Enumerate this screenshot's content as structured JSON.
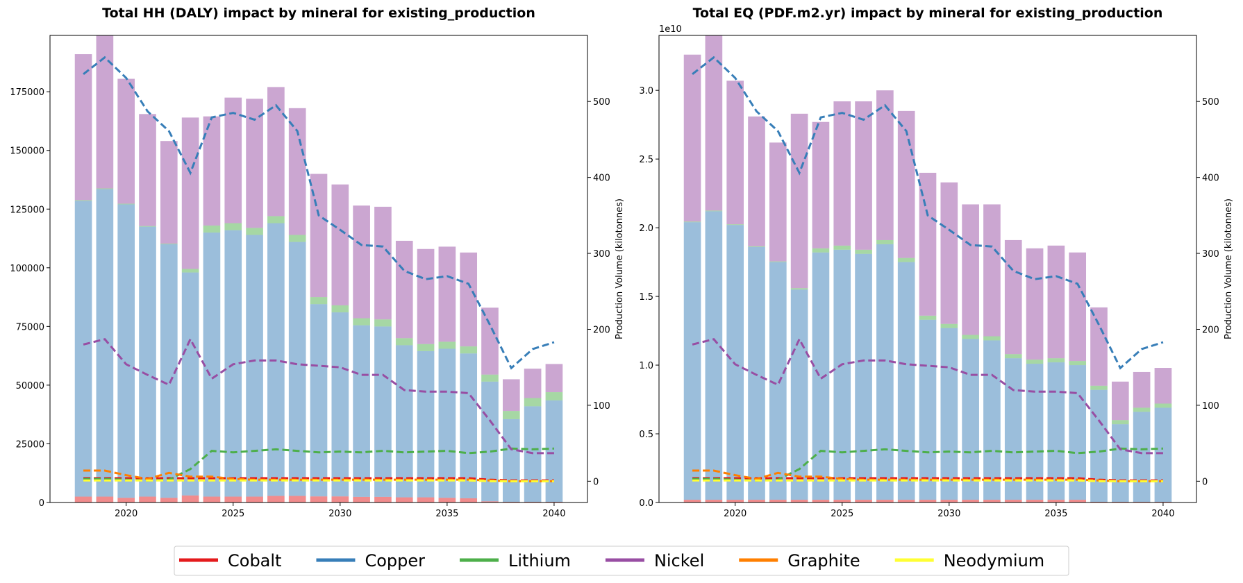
{
  "chart_data": [
    {
      "type": "bar",
      "title": "Total HH (DALY) impact by mineral for existing_production",
      "y2label": "Production Volume (kilotonnes)",
      "x": [
        2018,
        2019,
        2020,
        2021,
        2022,
        2023,
        2024,
        2025,
        2026,
        2027,
        2028,
        2029,
        2030,
        2031,
        2032,
        2033,
        2034,
        2035,
        2036,
        2037,
        2038,
        2039,
        2040
      ],
      "xlim": [
        2016.44,
        2041.56
      ],
      "xticks": [
        2020,
        2025,
        2030,
        2035,
        2040
      ],
      "ylim": [
        0,
        199000
      ],
      "yticks": [
        0,
        25000,
        50000,
        75000,
        100000,
        125000,
        150000,
        175000
      ],
      "y2lim": [
        -28,
        587
      ],
      "y2ticks": [
        0,
        100,
        200,
        300,
        400,
        500
      ],
      "series": [
        {
          "values": [
            2500,
            2500,
            2000,
            2500,
            2000,
            3000,
            2500,
            2500,
            2500,
            2800,
            2800,
            2600,
            2600,
            2400,
            2400,
            2200,
            2200,
            2000,
            1800,
            500,
            300,
            300,
            300
          ],
          "production": [
            4,
            4,
            4,
            4,
            4,
            4,
            4,
            4,
            4,
            4,
            4,
            4,
            4,
            4,
            4,
            4,
            4,
            4,
            4,
            2,
            1,
            1,
            1
          ]
        },
        {
          "values": [
            126000,
            131000,
            125000,
            115000,
            108000,
            95000,
            112500,
            113500,
            111500,
            116200,
            108200,
            81900,
            78400,
            73100,
            72600,
            64800,
            62300,
            63500,
            61700,
            51000,
            35200,
            40700,
            43200
          ],
          "production": [
            536,
            558,
            531,
            487,
            461,
            406,
            479,
            485,
            476,
            495,
            461,
            350,
            331,
            311,
            309,
            277,
            266,
            270,
            260,
            206,
            149,
            174,
            183
          ]
        },
        {
          "values": [
            300,
            300,
            300,
            300,
            300,
            1500,
            3000,
            3000,
            3000,
            3000,
            3000,
            3000,
            3000,
            3000,
            3000,
            3000,
            3000,
            3000,
            3000,
            3000,
            3500,
            3500,
            3500
          ],
          "production": [
            3,
            3,
            2,
            1,
            2,
            16,
            40,
            38,
            40,
            42,
            40,
            38,
            39,
            38,
            40,
            38,
            39,
            40,
            37,
            39,
            43,
            42,
            43
          ]
        },
        {
          "values": [
            62200,
            66200,
            53200,
            47700,
            43700,
            64500,
            46500,
            53500,
            55000,
            55000,
            54000,
            52500,
            51500,
            48000,
            48000,
            41500,
            40500,
            40500,
            40000,
            28500,
            13500,
            12500,
            12000
          ],
          "production": [
            180,
            187,
            154,
            140,
            127,
            187,
            135,
            154,
            159,
            159,
            154,
            152,
            150,
            140,
            140,
            120,
            118,
            118,
            116,
            80,
            42,
            37,
            37
          ]
        },
        {
          "values": [
            0,
            0,
            0,
            0,
            0,
            0,
            0,
            0,
            0,
            0,
            0,
            0,
            0,
            0,
            0,
            0,
            0,
            0,
            0,
            0,
            0,
            0,
            0
          ],
          "production": [
            14,
            14,
            8,
            3,
            11,
            6,
            6,
            3,
            2,
            2,
            2,
            2,
            2,
            2,
            2,
            2,
            2,
            2,
            2,
            1,
            0,
            0,
            0
          ]
        },
        {
          "values": [
            0,
            0,
            0,
            0,
            0,
            0,
            0,
            0,
            0,
            0,
            0,
            0,
            0,
            0,
            0,
            0,
            0,
            0,
            0,
            0,
            0,
            0,
            0
          ],
          "production": [
            1,
            1,
            1,
            1,
            1,
            1,
            1,
            1,
            1,
            1,
            1,
            1,
            1,
            1,
            1,
            1,
            1,
            1,
            1,
            0,
            0,
            0,
            0
          ]
        }
      ]
    },
    {
      "type": "bar",
      "title": "Total EQ (PDF.m2.yr) impact by mineral for existing_production",
      "y2label": "Production Volume (kilotonnes)",
      "y_offset_label": "1e10",
      "x": [
        2018,
        2019,
        2020,
        2021,
        2022,
        2023,
        2024,
        2025,
        2026,
        2027,
        2028,
        2029,
        2030,
        2031,
        2032,
        2033,
        2034,
        2035,
        2036,
        2037,
        2038,
        2039,
        2040
      ],
      "xlim": [
        2016.44,
        2041.56
      ],
      "xticks": [
        2020,
        2025,
        2030,
        2035,
        2040
      ],
      "ylim": [
        0,
        3.4
      ],
      "yticks": [
        {
          "value": 0,
          "label": "0.0"
        },
        0.5,
        {
          "value": 1,
          "label": "1.0"
        },
        1.5,
        {
          "value": 2,
          "label": "2.0"
        },
        2.5,
        {
          "value": 3,
          "label": "3.0"
        }
      ],
      "y2lim": [
        -28,
        587
      ],
      "y2ticks": [
        0,
        100,
        200,
        300,
        400,
        500
      ],
      "series": [
        {
          "values": [
            0.02,
            0.02,
            0.02,
            0.02,
            0.02,
            0.02,
            0.02,
            0.02,
            0.02,
            0.02,
            0.02,
            0.02,
            0.02,
            0.02,
            0.02,
            0.02,
            0.02,
            0.02,
            0.02,
            0.005,
            0.005,
            0.005,
            0.005
          ],
          "production": [
            4,
            4,
            4,
            4,
            4,
            4,
            4,
            4,
            4,
            4,
            4,
            4,
            4,
            4,
            4,
            4,
            4,
            4,
            4,
            2,
            1,
            1,
            1
          ]
        },
        {
          "values": [
            2.02,
            2.1,
            2.0,
            1.84,
            1.73,
            1.53,
            1.8,
            1.82,
            1.79,
            1.86,
            1.73,
            1.31,
            1.25,
            1.17,
            1.16,
            1.03,
            0.99,
            1.0,
            0.98,
            0.815,
            0.565,
            0.655,
            0.685
          ],
          "production": [
            536,
            558,
            531,
            487,
            461,
            406,
            479,
            485,
            476,
            495,
            461,
            350,
            331,
            311,
            309,
            277,
            266,
            270,
            260,
            206,
            149,
            174,
            183
          ]
        },
        {
          "values": [
            0.005,
            0.005,
            0.005,
            0.005,
            0.005,
            0.01,
            0.03,
            0.03,
            0.03,
            0.03,
            0.03,
            0.03,
            0.03,
            0.03,
            0.03,
            0.03,
            0.03,
            0.03,
            0.03,
            0.03,
            0.03,
            0.03,
            0.03
          ],
          "production": [
            3,
            3,
            2,
            1,
            2,
            16,
            40,
            38,
            40,
            42,
            40,
            38,
            39,
            38,
            40,
            38,
            39,
            40,
            37,
            39,
            43,
            42,
            43
          ]
        },
        {
          "values": [
            1.215,
            1.325,
            1.045,
            0.945,
            0.865,
            1.27,
            0.92,
            1.05,
            1.08,
            1.09,
            1.07,
            1.04,
            1.03,
            0.95,
            0.96,
            0.83,
            0.81,
            0.82,
            0.79,
            0.57,
            0.28,
            0.26,
            0.26
          ],
          "production": [
            180,
            187,
            154,
            140,
            127,
            187,
            135,
            154,
            159,
            159,
            154,
            152,
            150,
            140,
            140,
            120,
            118,
            118,
            116,
            80,
            42,
            37,
            37
          ]
        },
        {
          "values": [
            0,
            0,
            0,
            0,
            0,
            0,
            0,
            0,
            0,
            0,
            0,
            0,
            0,
            0,
            0,
            0,
            0,
            0,
            0,
            0,
            0,
            0,
            0
          ],
          "production": [
            14,
            14,
            8,
            3,
            11,
            6,
            6,
            3,
            2,
            2,
            2,
            2,
            2,
            2,
            2,
            2,
            2,
            2,
            2,
            1,
            0,
            0,
            0
          ]
        },
        {
          "values": [
            0,
            0,
            0,
            0,
            0,
            0,
            0,
            0,
            0,
            0,
            0,
            0,
            0,
            0,
            0,
            0,
            0,
            0,
            0,
            0,
            0,
            0,
            0
          ],
          "production": [
            1,
            1,
            1,
            1,
            1,
            1,
            1,
            1,
            1,
            1,
            1,
            1,
            1,
            1,
            1,
            1,
            1,
            1,
            1,
            0,
            0,
            0,
            0
          ]
        }
      ]
    }
  ],
  "legend": {
    "position": "bottom",
    "entries": [
      {
        "name": "Cobalt",
        "color": "#e41a1c"
      },
      {
        "name": "Copper",
        "color": "#377eb8"
      },
      {
        "name": "Lithium",
        "color": "#4daf4a"
      },
      {
        "name": "Nickel",
        "color": "#984ea3"
      },
      {
        "name": "Graphite",
        "color": "#ff7f00"
      },
      {
        "name": "Neodymium",
        "color": "#ffff33"
      }
    ]
  }
}
